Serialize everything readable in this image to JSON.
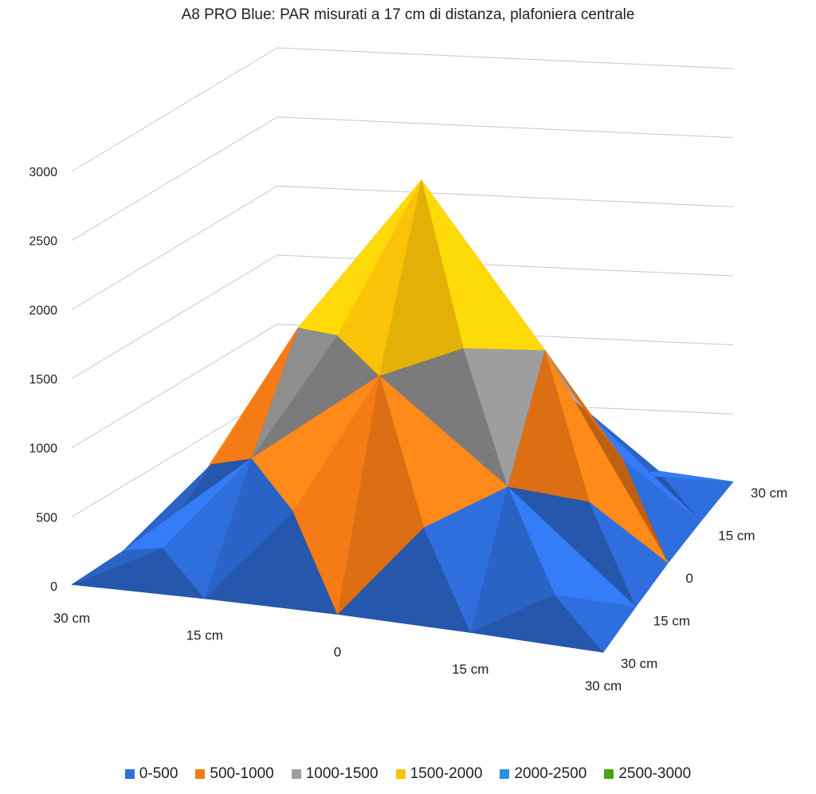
{
  "chart_data": {
    "type": "surface",
    "title": "A8 PRO Blue: PAR misurati a 17 cm di distanza, plafoniera centrale",
    "x_labels": [
      "30 cm",
      "15 cm",
      "0",
      "15 cm",
      "30 cm"
    ],
    "y_labels": [
      "30 cm",
      "15 cm",
      "0",
      "15 cm",
      "30 cm"
    ],
    "z_ticks": [
      "0",
      "500",
      "1000",
      "1500",
      "2000",
      "2500",
      "3000"
    ],
    "zlim": [
      0,
      3000
    ],
    "grid": true,
    "values": [
      [
        10,
        30,
        40,
        30,
        10
      ],
      [
        30,
        800,
        1500,
        800,
        30
      ],
      [
        40,
        1500,
        2650,
        1500,
        40
      ],
      [
        30,
        800,
        1500,
        800,
        30
      ],
      [
        10,
        30,
        40,
        30,
        10
      ]
    ],
    "legend": [
      {
        "label": "0-500",
        "color": "#2f6fdd"
      },
      {
        "label": "500-1000",
        "color": "#f47b16"
      },
      {
        "label": "1000-1500",
        "color": "#9e9e9e"
      },
      {
        "label": "1500-2000",
        "color": "#fbc308"
      },
      {
        "label": "2000-2500",
        "color": "#2b8fe6"
      },
      {
        "label": "2500-3000",
        "color": "#46a617"
      }
    ],
    "legend_position": "bottom"
  }
}
